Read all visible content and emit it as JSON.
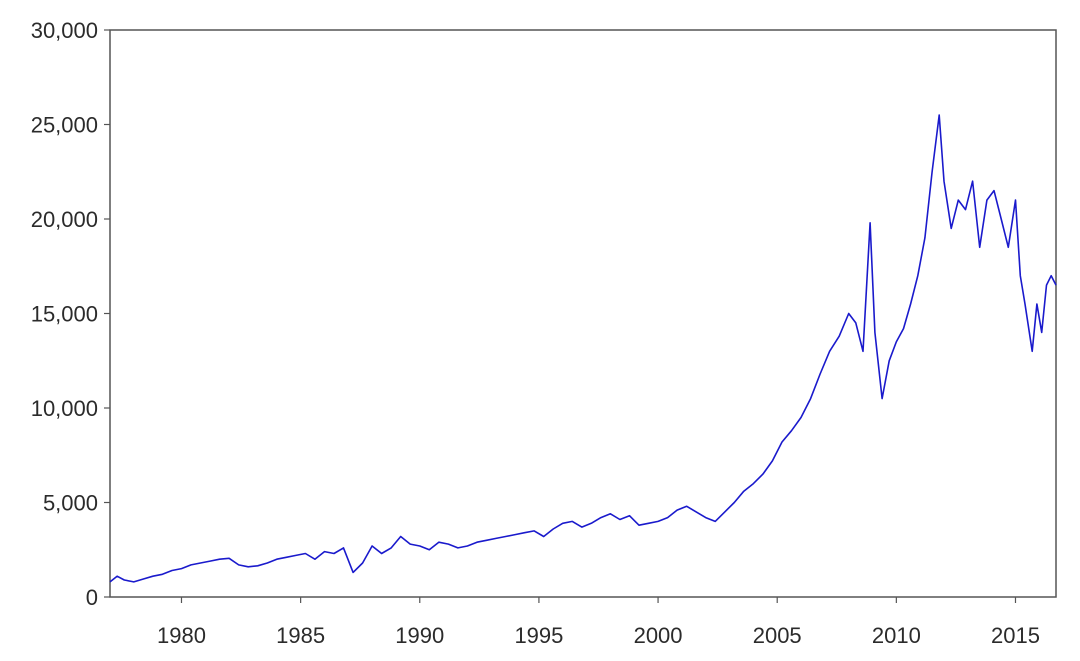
{
  "chart_data": {
    "type": "line",
    "title": "",
    "xlabel": "",
    "ylabel": "",
    "xlim": [
      1977.0,
      2016.7
    ],
    "ylim": [
      0,
      30000
    ],
    "grid": false,
    "legend": "none",
    "y_ticks": [
      {
        "value": 0,
        "label": "0"
      },
      {
        "value": 5000,
        "label": "5,000"
      },
      {
        "value": 10000,
        "label": "10,000"
      },
      {
        "value": 15000,
        "label": "15,000"
      },
      {
        "value": 20000,
        "label": "20,000"
      },
      {
        "value": 25000,
        "label": "25,000"
      },
      {
        "value": 30000,
        "label": "30,000"
      }
    ],
    "x_ticks": [
      {
        "value": 1980,
        "label": "1980"
      },
      {
        "value": 1985,
        "label": "1985"
      },
      {
        "value": 1990,
        "label": "1990"
      },
      {
        "value": 1995,
        "label": "1995"
      },
      {
        "value": 2000,
        "label": "2000"
      },
      {
        "value": 2005,
        "label": "2005"
      },
      {
        "value": 2010,
        "label": "2010"
      },
      {
        "value": 2015,
        "label": "2015"
      }
    ],
    "line_color": "#1a1acc",
    "series": [
      {
        "x": [
          1977.0,
          1977.3,
          1977.6,
          1978.0,
          1978.4,
          1978.8,
          1979.2,
          1979.6,
          1980.0,
          1980.4,
          1980.8,
          1981.2,
          1981.6,
          1982.0,
          1982.4,
          1982.8,
          1983.2,
          1983.6,
          1984.0,
          1984.4,
          1984.8,
          1985.2,
          1985.6,
          1986.0,
          1986.4,
          1986.8,
          1987.2,
          1987.6,
          1988.0,
          1988.4,
          1988.8,
          1989.2,
          1989.6,
          1990.0,
          1990.4,
          1990.8,
          1991.2,
          1991.6,
          1992.0,
          1992.4,
          1992.8,
          1993.2,
          1993.6,
          1994.0,
          1994.4,
          1994.8,
          1995.2,
          1995.6,
          1996.0,
          1996.4,
          1996.8,
          1997.2,
          1997.6,
          1998.0,
          1998.4,
          1998.8,
          1999.2,
          1999.6,
          2000.0,
          2000.4,
          2000.8,
          2001.2,
          2001.6,
          2002.0,
          2002.4,
          2002.8,
          2003.2,
          2003.6,
          2004.0,
          2004.4,
          2004.8,
          2005.2,
          2005.6,
          2006.0,
          2006.4,
          2006.8,
          2007.2,
          2007.6,
          2008.0,
          2008.3,
          2008.6,
          2008.9,
          2009.1,
          2009.4,
          2009.7,
          2010.0,
          2010.3,
          2010.6,
          2010.9,
          2011.2,
          2011.5,
          2011.8,
          2012.0,
          2012.3,
          2012.6,
          2012.9,
          2013.2,
          2013.5,
          2013.8,
          2014.1,
          2014.4,
          2014.7,
          2015.0,
          2015.2,
          2015.4,
          2015.7,
          2015.9,
          2016.1,
          2016.3,
          2016.5,
          2016.7
        ],
        "y": [
          800,
          1100,
          900,
          800,
          950,
          1100,
          1200,
          1400,
          1500,
          1700,
          1800,
          1900,
          2000,
          2050,
          1700,
          1600,
          1650,
          1800,
          2000,
          2100,
          2200,
          2300,
          2000,
          2400,
          2300,
          2600,
          1300,
          1800,
          2700,
          2300,
          2600,
          3200,
          2800,
          2700,
          2500,
          2900,
          2800,
          2600,
          2700,
          2900,
          3000,
          3100,
          3200,
          3300,
          3400,
          3500,
          3200,
          3600,
          3900,
          4000,
          3700,
          3900,
          4200,
          4400,
          4100,
          4300,
          3800,
          3900,
          4000,
          4200,
          4600,
          4800,
          4500,
          4200,
          4000,
          4500,
          5000,
          5600,
          6000,
          6500,
          7200,
          8200,
          8800,
          9500,
          10500,
          11800,
          13000,
          13800,
          15000,
          14500,
          13000,
          19800,
          14000,
          10500,
          12500,
          13500,
          14200,
          15500,
          17000,
          19000,
          22500,
          25500,
          22000,
          19500,
          21000,
          20500,
          22000,
          18500,
          21000,
          21500,
          20000,
          18500,
          21000,
          17000,
          15500,
          13000,
          15500,
          14000,
          16500,
          17000,
          16500
        ]
      }
    ]
  }
}
